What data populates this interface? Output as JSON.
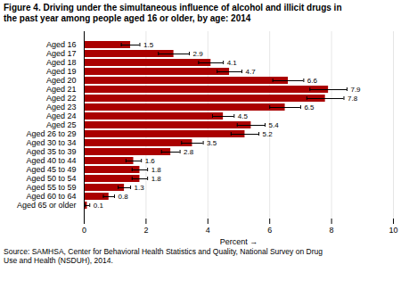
{
  "chart_data": {
    "type": "bar",
    "orientation": "horizontal",
    "title": "Figure 4. Driving under the simultaneous influence of alcohol and illicit drugs in\nthe past year among people aged 16 or older, by age: 2014",
    "source": "Source: SAMHSA, Center for Behavioral Health Statistics and Quality, National Survey on Drug\nUse and Health (NSDUH), 2014.",
    "categories": [
      "Aged 16",
      "Aged 17",
      "Aged 18",
      "Aged 19",
      "Aged 20",
      "Aged 21",
      "Aged 22",
      "Aged 23",
      "Aged 24",
      "Aged 25",
      "Aged 26 to 29",
      "Aged 30 to 34",
      "Aged 35 to 39",
      "Aged 40 to 44",
      "Aged 45 to 49",
      "Aged 50 to 54",
      "Aged 55 to 59",
      "Aged 60 to 64",
      "Aged 65 or older"
    ],
    "values": [
      1.5,
      2.9,
      4.1,
      4.7,
      6.6,
      7.9,
      7.8,
      6.5,
      4.5,
      5.4,
      5.2,
      3.5,
      2.8,
      1.6,
      1.8,
      1.8,
      1.3,
      0.8,
      0.1
    ],
    "error_bars": [
      0.3,
      0.5,
      0.4,
      0.4,
      0.5,
      0.6,
      0.6,
      0.5,
      0.35,
      0.45,
      0.45,
      0.35,
      0.3,
      0.25,
      0.25,
      0.25,
      0.2,
      0.18,
      0.08
    ],
    "color": "#aa0000",
    "xlabel": "Percent",
    "xlim": [
      0,
      10
    ],
    "xticks": [
      0,
      2,
      4,
      6,
      8,
      10
    ],
    "grid": true,
    "data_labels": true
  }
}
